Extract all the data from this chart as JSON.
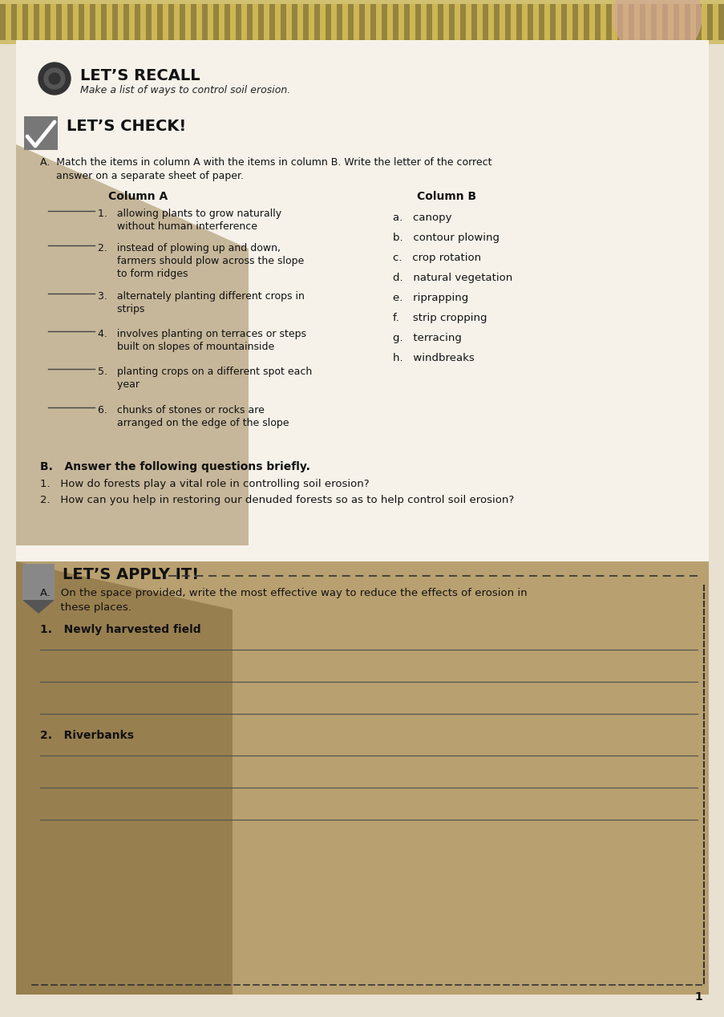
{
  "title_recall": "LET’S RECALL",
  "subtitle_recall": "Make a list of ways to control soil erosion.",
  "title_check": "LET’S CHECK!",
  "check_intro_a": "A.  Match the items in column A with the items in column B. Write the letter of the correct",
  "check_intro_b": "     answer on a separate sheet of paper.",
  "col_a_header": "Column A",
  "col_b_header": "Column B",
  "col_a_items": [
    [
      "1.   allowing plants to grow naturally",
      "      without human interference"
    ],
    [
      "2.   instead of plowing up and down,",
      "      farmers should plow across the slope",
      "      to form ridges"
    ],
    [
      "3.   alternately planting different crops in",
      "      strips"
    ],
    [
      "4.   involves planting on terraces or steps",
      "      built on slopes of mountainside"
    ],
    [
      "5.   planting crops on a different spot each",
      "      year"
    ],
    [
      "6.   chunks of stones or rocks are",
      "      arranged on the edge of the slope"
    ]
  ],
  "col_b_items": [
    "a.   canopy",
    "b.   contour plowing",
    "c.   crop rotation",
    "d.   natural vegetation",
    "e.   riprapping",
    "f.    strip cropping",
    "g.   terracing",
    "h.   windbreaks"
  ],
  "answer_header": "B.   Answer the following questions briefly.",
  "answer_q1": "1.   How do forests play a vital role in controlling soil erosion?",
  "answer_q2": "2.   How can you help in restoring our denuded forests so as to help control soil erosion?",
  "apply_title": "LET’S APPLY IT!",
  "apply_intro_a": "A.   On the space provided, write the most effective way to reduce the effects of erosion in",
  "apply_intro_b": "      these places.",
  "apply_q1": "1.   Newly harvested field",
  "apply_q2": "2.   Riverbanks",
  "page_number": "1"
}
